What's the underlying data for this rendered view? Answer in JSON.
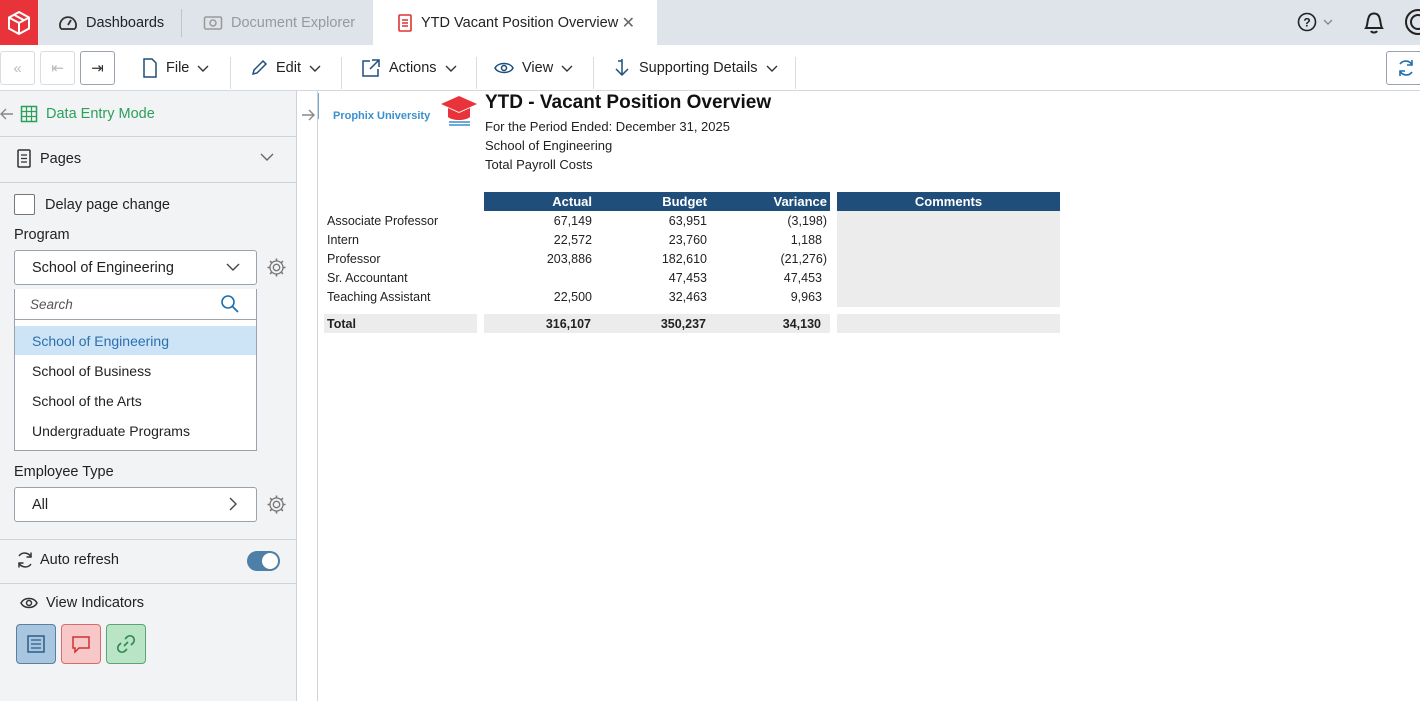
{
  "tabs": {
    "dashboards": "Dashboards",
    "explorer": "Document Explorer",
    "active": "YTD Vacant Position Overview"
  },
  "toolbar": {
    "file": "File",
    "edit": "Edit",
    "actions": "Actions",
    "view": "View",
    "supporting": "Supporting Details"
  },
  "left": {
    "mode": "Data Entry Mode",
    "pages": "Pages",
    "delay": "Delay page change",
    "program_label": "Program",
    "program_value": "School of Engineering",
    "search_placeholder": "Search",
    "options": [
      "School of Engineering",
      "School of Business",
      "School of the Arts",
      "Undergraduate Programs"
    ],
    "employee_label": "Employee Type",
    "employee_value": "All",
    "auto_refresh": "Auto refresh",
    "view_indicators": "View Indicators"
  },
  "report": {
    "brand": "Prophix University",
    "title": "YTD - Vacant Position Overview",
    "period": "For the Period Ended: December 31, 2025",
    "school": "School of Engineering",
    "measure": "Total Payroll Costs",
    "headers": [
      "Actual",
      "Budget",
      "Variance",
      "Comments"
    ],
    "rows": [
      {
        "label": "Associate Professor",
        "actual": "67,149",
        "budget": "63,951",
        "variance": "(3,198)"
      },
      {
        "label": "Intern",
        "actual": "22,572",
        "budget": "23,760",
        "variance": "1,188"
      },
      {
        "label": "Professor",
        "actual": "203,886",
        "budget": "182,610",
        "variance": "(21,276)"
      },
      {
        "label": "Sr. Accountant",
        "actual": "",
        "budget": "47,453",
        "variance": "47,453"
      },
      {
        "label": "Teaching Assistant",
        "actual": "22,500",
        "budget": "32,463",
        "variance": "9,963"
      }
    ],
    "total": {
      "label": "Total",
      "actual": "316,107",
      "budget": "350,237",
      "variance": "34,130"
    }
  }
}
